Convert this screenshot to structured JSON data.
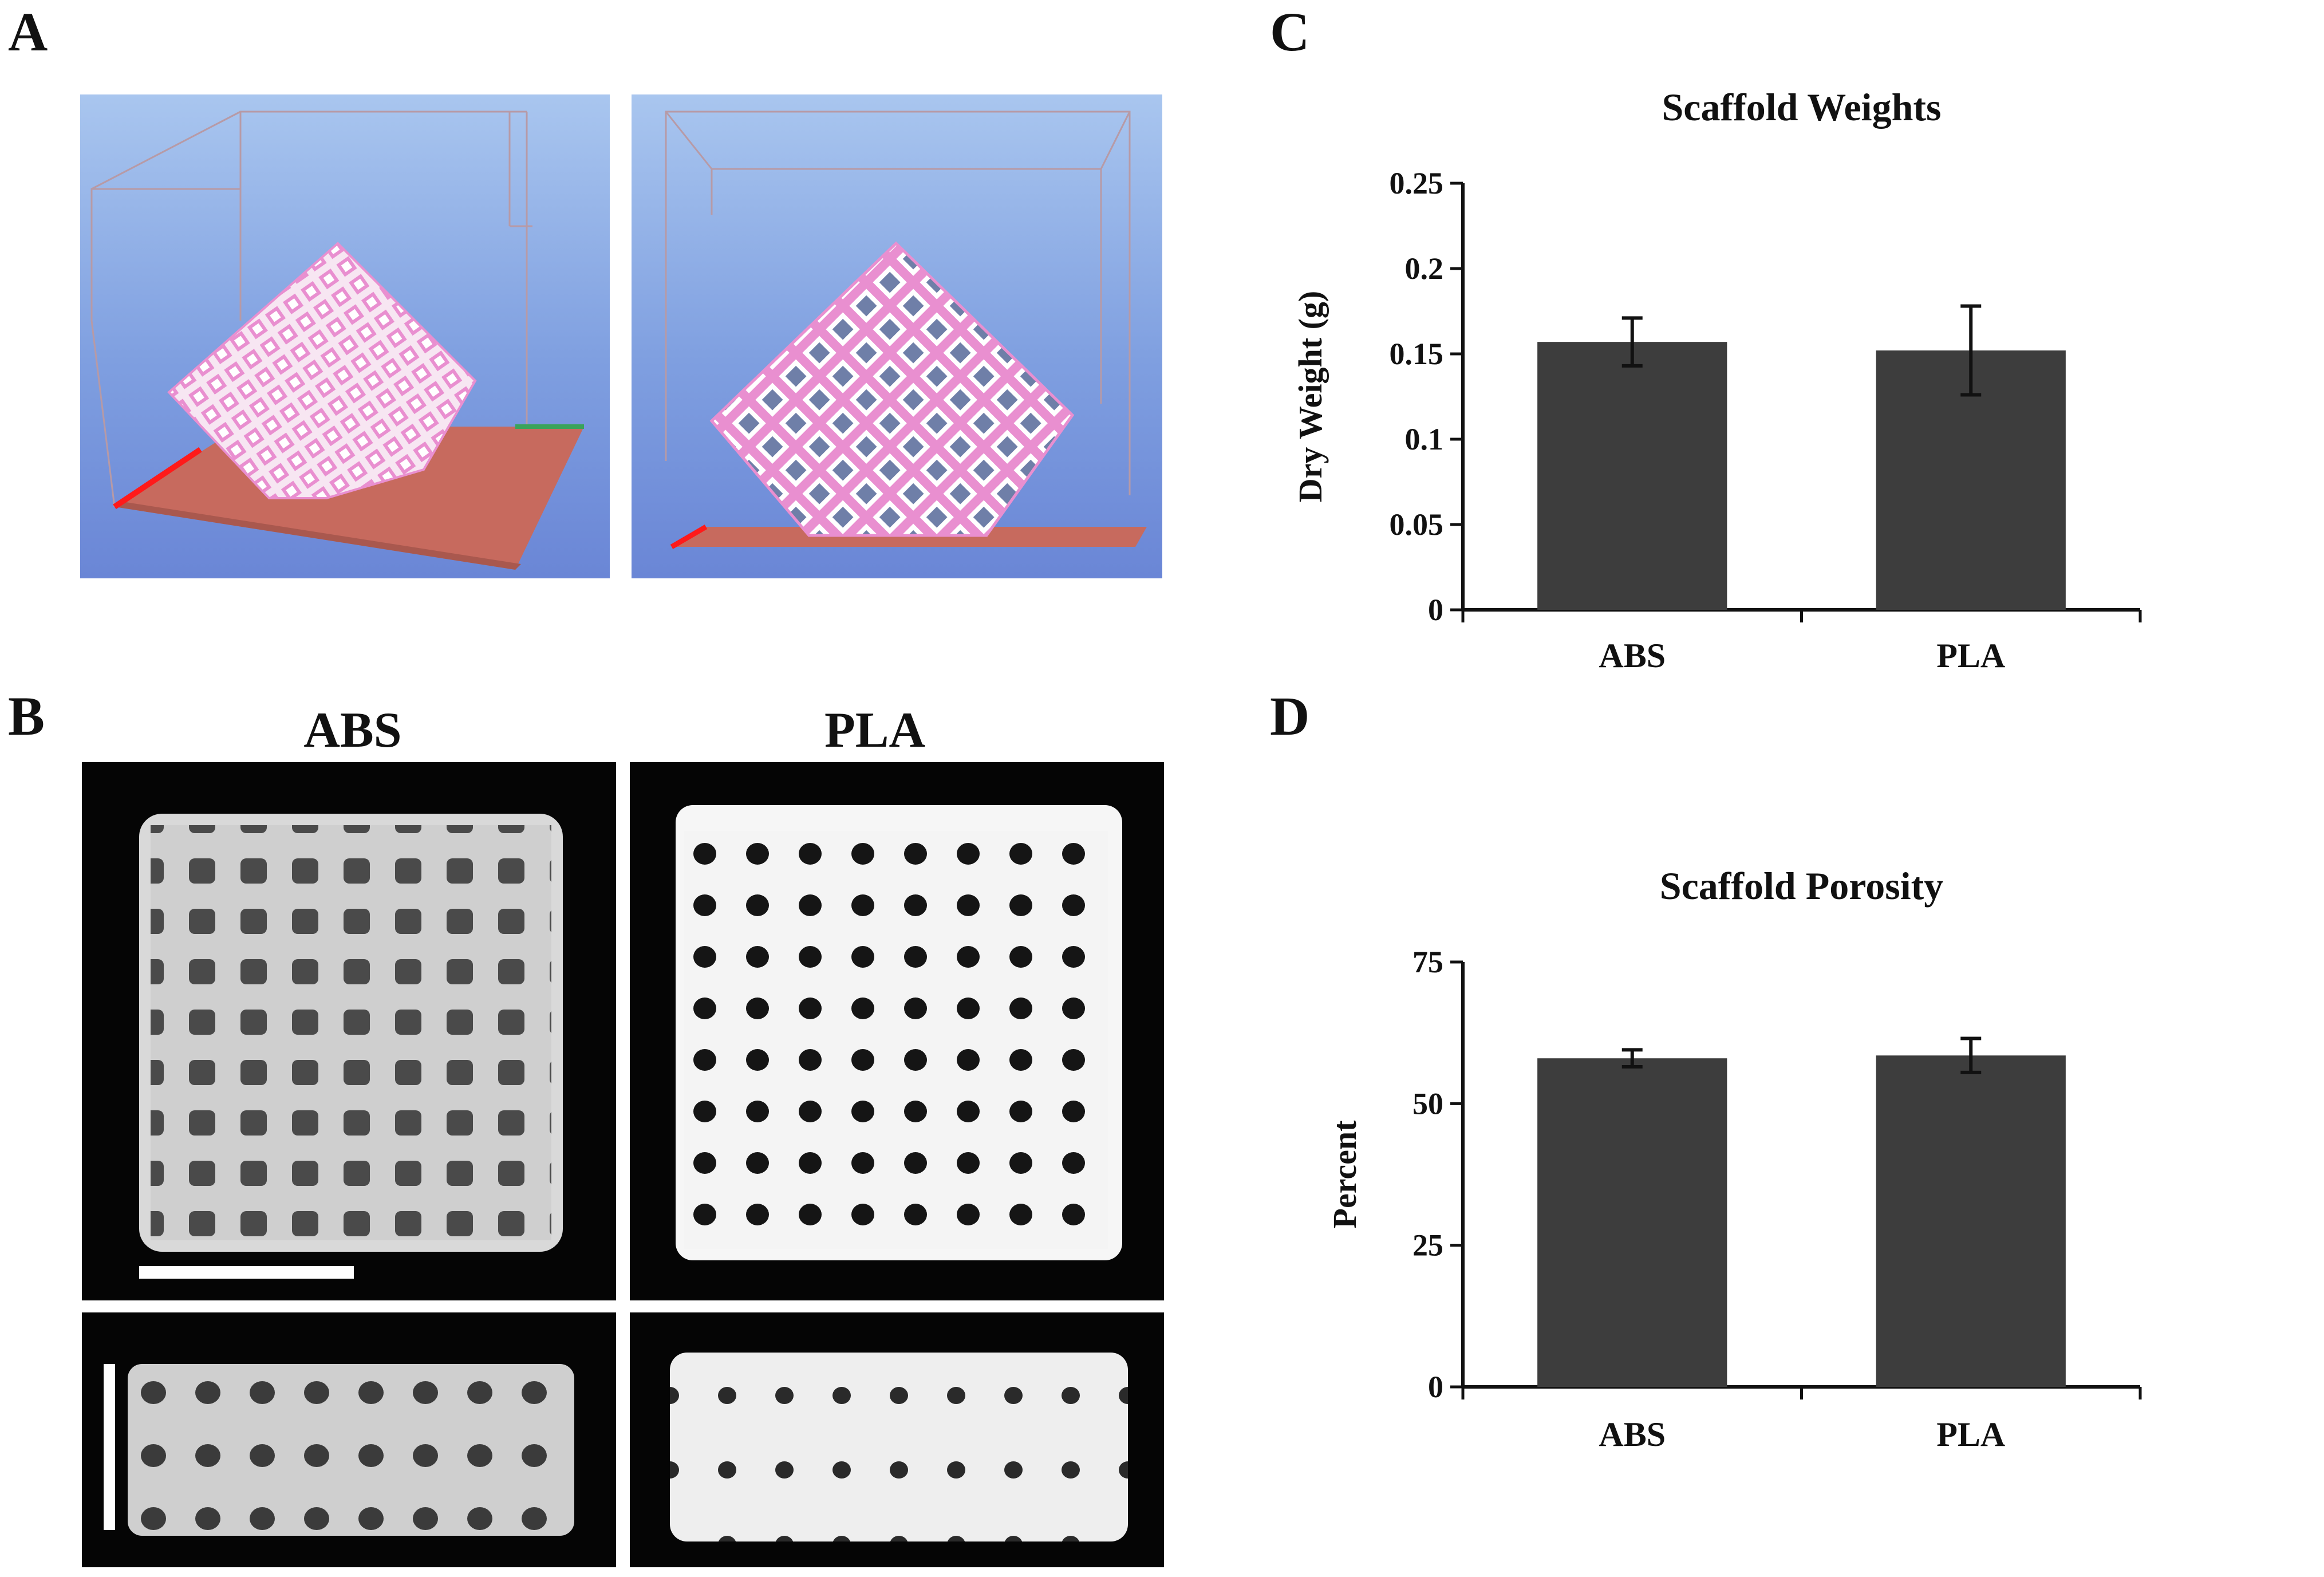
{
  "figure": {
    "panel_labels": {
      "a": "A",
      "b": "B",
      "c": "C",
      "d": "D"
    },
    "panel_b": {
      "col_abs": "ABS",
      "col_pla": "PLA"
    }
  },
  "chart_data": [
    {
      "type": "bar",
      "title": "Scaffold Weights",
      "ylabel": "Dry Weight  (g)",
      "xlabel": "",
      "categories": [
        "ABS",
        "PLA"
      ],
      "values": [
        0.157,
        0.152
      ],
      "errors": [
        0.014,
        0.026
      ],
      "ylim": [
        0,
        0.25
      ],
      "yticks": [
        "0",
        "0.05",
        "0.1",
        "0.15",
        "0.2",
        "0.25"
      ],
      "ytick_values": [
        0,
        0.05,
        0.1,
        0.15,
        0.2,
        0.25
      ],
      "bar_color": "#3d3d3d",
      "grid": false
    },
    {
      "type": "bar",
      "title": "Scaffold Porosity",
      "ylabel": "Percent",
      "xlabel": "",
      "categories": [
        "ABS",
        "PLA"
      ],
      "values": [
        58,
        58.5
      ],
      "errors": [
        1.5,
        3.0
      ],
      "ylim": [
        0,
        75
      ],
      "yticks": [
        "0",
        "25",
        "50",
        "75"
      ],
      "ytick_values": [
        0,
        25,
        50,
        75
      ],
      "bar_color": "#3d3d3d",
      "grid": false
    }
  ]
}
